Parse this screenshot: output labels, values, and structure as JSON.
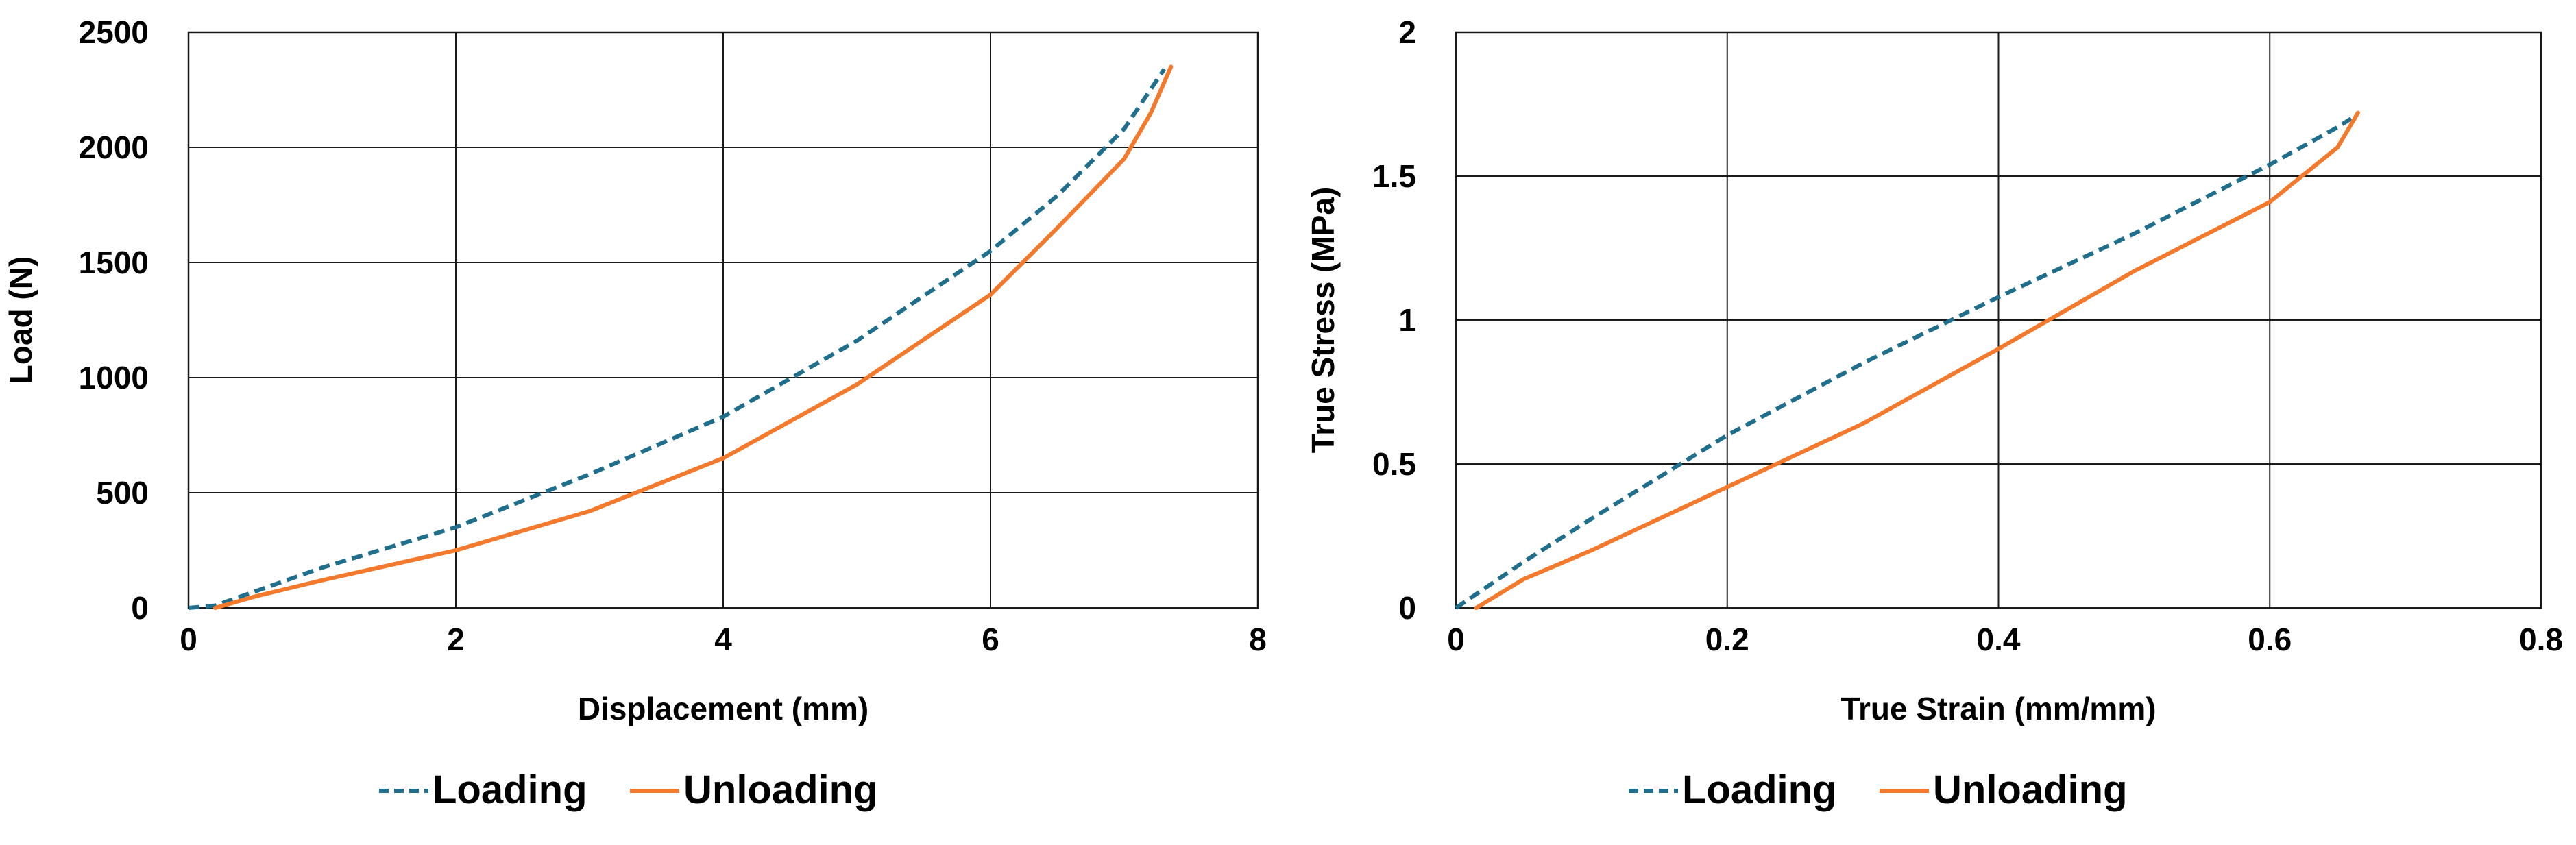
{
  "chart_data": [
    {
      "type": "line",
      "title": "",
      "xlabel": "Displacement (mm)",
      "ylabel": "Load (N)",
      "xlim": [
        0,
        8
      ],
      "ylim": [
        0,
        2500
      ],
      "xticks": [
        0,
        2,
        4,
        6,
        8
      ],
      "yticks": [
        0,
        500,
        1000,
        1500,
        2000,
        2500
      ],
      "grid": true,
      "legend_position": "bottom",
      "series": [
        {
          "name": "Loading",
          "color": "#1F6E8C",
          "style": "dashed",
          "x": [
            0,
            0.2,
            1,
            2,
            3,
            4,
            5,
            6,
            6.5,
            7,
            7.3
          ],
          "y": [
            0,
            10,
            175,
            350,
            580,
            830,
            1160,
            1550,
            1790,
            2080,
            2340
          ]
        },
        {
          "name": "Unloading",
          "color": "#F37A2C",
          "style": "solid",
          "x": [
            7.35,
            7.2,
            7.0,
            6.5,
            6.0,
            5.0,
            4.0,
            3.0,
            2.0,
            1.0,
            0.5,
            0.2
          ],
          "y": [
            2350,
            2150,
            1950,
            1650,
            1360,
            970,
            650,
            420,
            250,
            120,
            50,
            0
          ]
        }
      ]
    },
    {
      "type": "line",
      "title": "",
      "xlabel": "True Strain (mm/mm)",
      "ylabel": "True Stress (MPa)",
      "xlim": [
        0,
        0.8
      ],
      "ylim": [
        0,
        2
      ],
      "xticks": [
        0,
        0.2,
        0.4,
        0.6,
        0.8
      ],
      "yticks": [
        0,
        0.5,
        1,
        1.5,
        2
      ],
      "grid": true,
      "legend_position": "bottom",
      "series": [
        {
          "name": "Loading",
          "color": "#1F6E8C",
          "style": "dashed",
          "x": [
            0,
            0.05,
            0.1,
            0.2,
            0.3,
            0.4,
            0.5,
            0.6,
            0.65,
            0.66
          ],
          "y": [
            0,
            0.16,
            0.31,
            0.6,
            0.85,
            1.08,
            1.3,
            1.54,
            1.67,
            1.7
          ]
        },
        {
          "name": "Unloading",
          "color": "#F37A2C",
          "style": "solid",
          "x": [
            0.665,
            0.65,
            0.6,
            0.5,
            0.4,
            0.3,
            0.2,
            0.1,
            0.05,
            0.015
          ],
          "y": [
            1.72,
            1.6,
            1.41,
            1.17,
            0.9,
            0.64,
            0.42,
            0.2,
            0.1,
            0
          ]
        }
      ]
    }
  ]
}
